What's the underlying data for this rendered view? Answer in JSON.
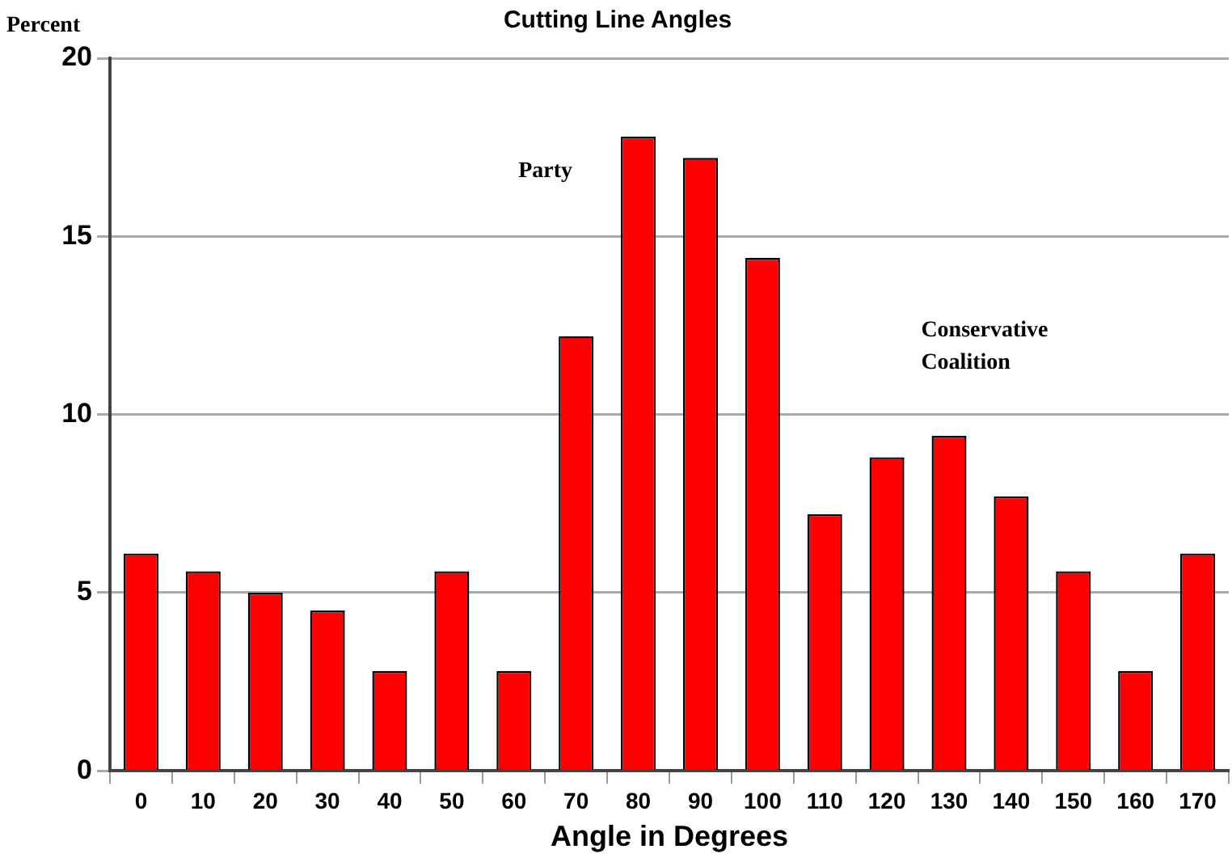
{
  "chart_data": {
    "type": "bar",
    "title": "Cutting Line Angles",
    "xlabel": "Angle in Degrees",
    "ylabel": "Percent",
    "categories": [
      "0",
      "10",
      "20",
      "30",
      "40",
      "50",
      "60",
      "70",
      "80",
      "90",
      "100",
      "110",
      "120",
      "130",
      "140",
      "150",
      "160",
      "170"
    ],
    "values": [
      6.1,
      5.6,
      5.0,
      4.5,
      2.8,
      5.6,
      2.8,
      12.2,
      17.8,
      17.2,
      14.4,
      7.2,
      8.8,
      9.4,
      7.7,
      5.6,
      2.8,
      6.1
    ],
    "color": "#ff0000",
    "ylim": [
      0,
      20
    ],
    "yticks": [
      0,
      5,
      10,
      15,
      20
    ],
    "grid": "y",
    "annotations": [
      "Party",
      "Conservative\nCoalition"
    ]
  }
}
